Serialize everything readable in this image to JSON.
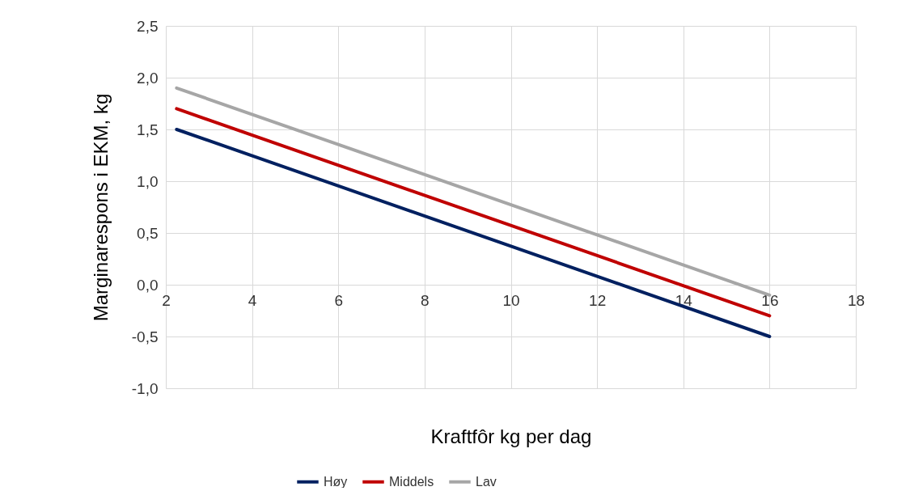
{
  "chart_data": {
    "type": "line",
    "xlabel": "Kraftfôr kg per dag",
    "ylabel": "Marginarespons i EKM, kg",
    "x": [
      2.25,
      16
    ],
    "series": [
      {
        "name": "Høy",
        "color": "#002060",
        "values": [
          1.5,
          -0.5
        ]
      },
      {
        "name": "Middels",
        "color": "#c00000",
        "values": [
          1.7,
          -0.3
        ]
      },
      {
        "name": "Lav",
        "color": "#a6a6a6",
        "values": [
          1.9,
          -0.1
        ]
      }
    ],
    "xlim": [
      2,
      18
    ],
    "xticks": [
      2,
      4,
      6,
      8,
      10,
      12,
      14,
      16,
      18
    ],
    "ylim": [
      -1,
      2.5
    ],
    "yticks": [
      {
        "value": -1,
        "label": "-1,0"
      },
      {
        "value": -0.5,
        "label": "-0,5"
      },
      {
        "value": 0,
        "label": "0,0"
      },
      {
        "value": 0.5,
        "label": "0,5"
      },
      {
        "value": 1,
        "label": "1,0"
      },
      {
        "value": 1.5,
        "label": "1,5"
      },
      {
        "value": 2,
        "label": "2,0"
      },
      {
        "value": 2.5,
        "label": "2,5"
      }
    ],
    "grid": true,
    "legend": "bottom",
    "marker": "none",
    "line_style": "solid"
  }
}
